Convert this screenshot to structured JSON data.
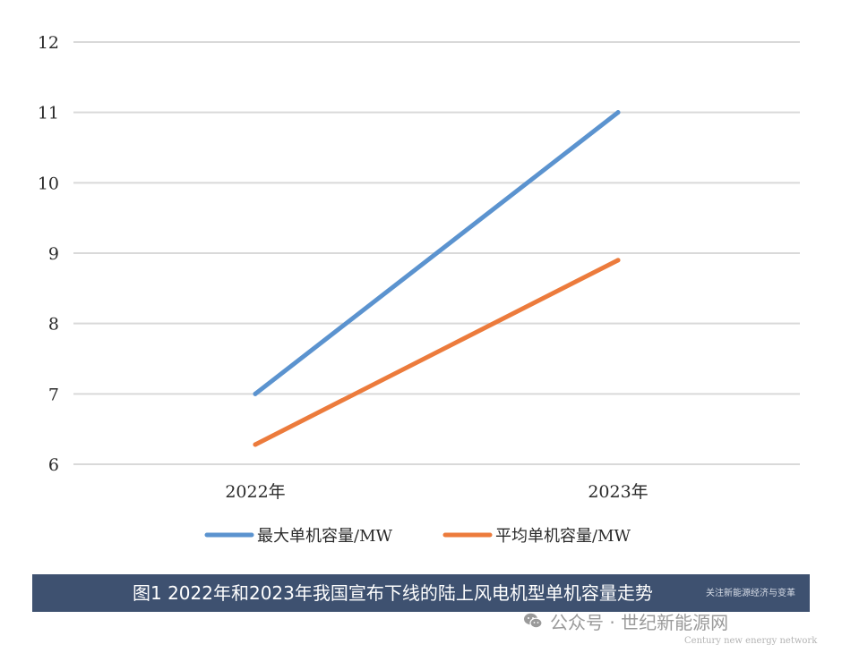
{
  "chart_data": {
    "type": "line",
    "categories": [
      "2022年",
      "2023年"
    ],
    "series": [
      {
        "name": "最大单机容量/MW",
        "values": [
          7.0,
          11.0
        ],
        "color": "#5b93cf"
      },
      {
        "name": "平均单机容量/MW",
        "values": [
          6.28,
          8.9
        ],
        "color": "#ec7b3c"
      }
    ],
    "yticks": [
      "6",
      "7",
      "8",
      "9",
      "10",
      "11",
      "12"
    ],
    "ylim": [
      6,
      12
    ],
    "grid": true,
    "legend_position": "bottom"
  },
  "caption": {
    "text": "图1 2022年和2023年我国宣布下线的陆上风电机型单机容量走势",
    "tag": "关注新能源经济与变革"
  },
  "footer": {
    "wechat_icon": "wechat-icon",
    "account": "公众号 · 世纪新能源网",
    "english_name": "Century new energy network"
  }
}
